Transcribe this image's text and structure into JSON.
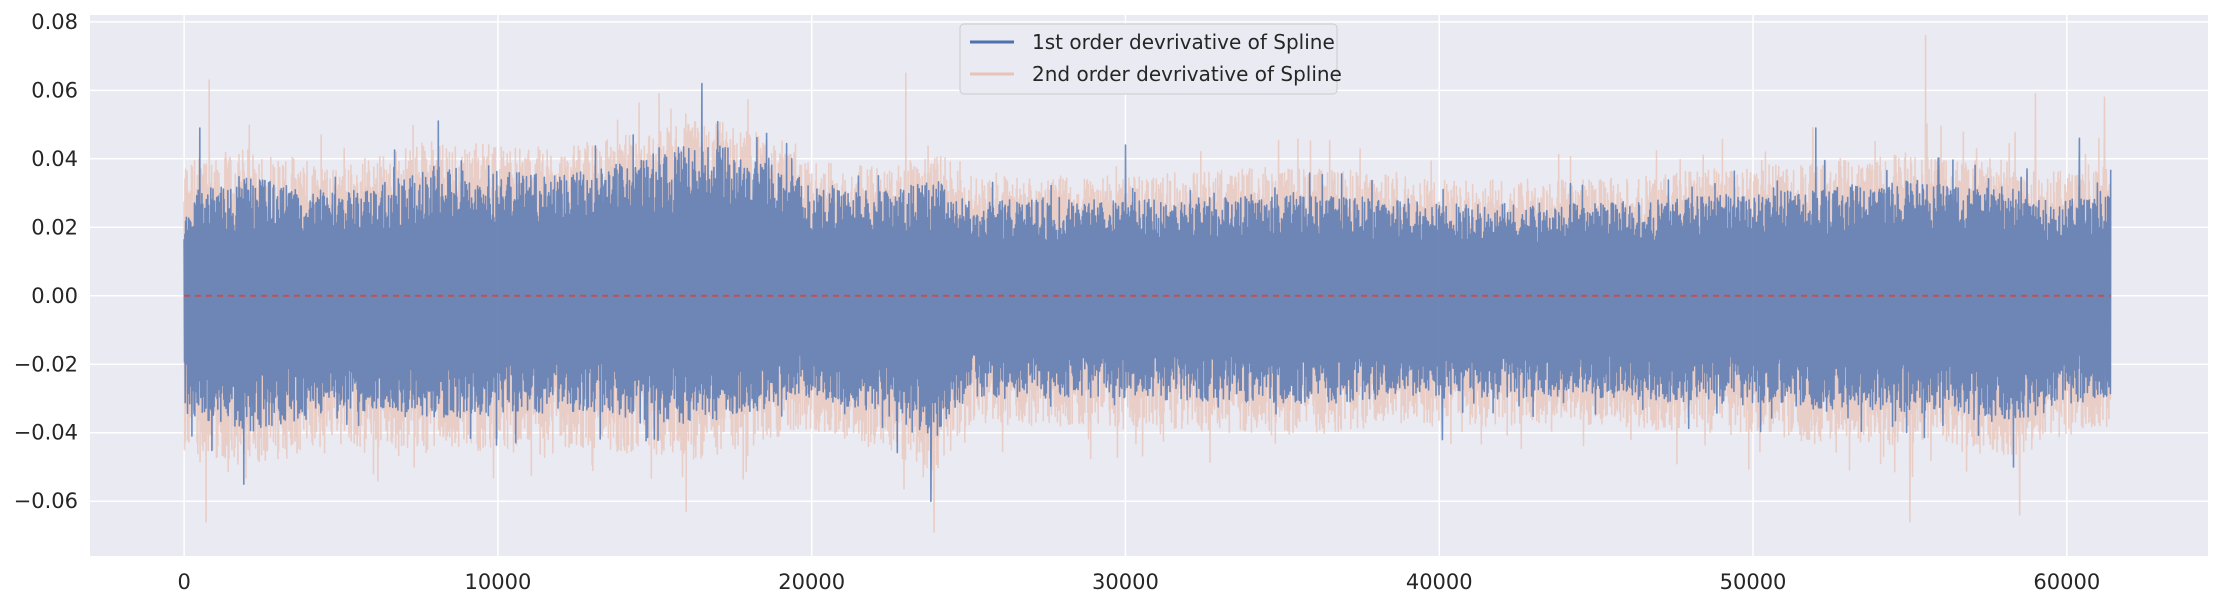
{
  "chart_data": {
    "type": "line",
    "title": "",
    "xlabel": "",
    "ylabel": "",
    "xlim": [
      -3000,
      64500
    ],
    "ylim": [
      -0.076,
      0.082
    ],
    "x_range": [
      0,
      61400
    ],
    "xticks": [
      0,
      10000,
      20000,
      30000,
      40000,
      50000,
      60000
    ],
    "xtick_labels": [
      "0",
      "10000",
      "20000",
      "30000",
      "40000",
      "50000",
      "60000"
    ],
    "yticks": [
      -0.06,
      -0.04,
      -0.02,
      0.0,
      0.02,
      0.04,
      0.06,
      0.08
    ],
    "ytick_labels": [
      "−0.06",
      "−0.04",
      "−0.02",
      "0.00",
      "0.02",
      "0.04",
      "0.06",
      "0.08"
    ],
    "grid": true,
    "legend_position": "top-center",
    "series": [
      {
        "name": "1st order devrivative of Spline",
        "color": "#4c72b0",
        "envelope_x": [
          0,
          2000,
          5000,
          8000,
          12000,
          16500,
          18000,
          20000,
          22000,
          24000,
          25000,
          30000,
          35000,
          40000,
          45000,
          50000,
          55000,
          58000,
          60000,
          61400
        ],
        "envelope_upper": [
          0.03,
          0.035,
          0.03,
          0.038,
          0.035,
          0.045,
          0.042,
          0.032,
          0.03,
          0.034,
          0.028,
          0.028,
          0.03,
          0.027,
          0.027,
          0.03,
          0.034,
          0.032,
          0.028,
          0.03
        ],
        "envelope_lower": [
          -0.035,
          -0.04,
          -0.034,
          -0.036,
          -0.034,
          -0.038,
          -0.034,
          -0.03,
          -0.034,
          -0.042,
          -0.03,
          -0.03,
          -0.032,
          -0.03,
          -0.03,
          -0.032,
          -0.034,
          -0.038,
          -0.032,
          -0.03
        ],
        "peaks": [
          [
            500,
            0.049
          ],
          [
            8100,
            0.051
          ],
          [
            16500,
            0.062
          ],
          [
            30000,
            0.044
          ],
          [
            52000,
            0.049
          ],
          [
            60400,
            0.046
          ],
          [
            1900,
            -0.055
          ],
          [
            23800,
            -0.06
          ],
          [
            40100,
            -0.042
          ],
          [
            58300,
            -0.05
          ]
        ]
      },
      {
        "name": "2nd order devrivative of Spline",
        "color": "#e8c4b8",
        "envelope_x": [
          0,
          2000,
          5000,
          8000,
          12000,
          16500,
          18000,
          20000,
          22000,
          24000,
          25000,
          30000,
          35000,
          40000,
          45000,
          50000,
          55000,
          58000,
          60000,
          61400
        ],
        "envelope_upper": [
          0.04,
          0.043,
          0.038,
          0.046,
          0.043,
          0.052,
          0.049,
          0.039,
          0.038,
          0.042,
          0.035,
          0.035,
          0.038,
          0.034,
          0.034,
          0.038,
          0.042,
          0.04,
          0.036,
          0.038
        ],
        "envelope_lower": [
          -0.045,
          -0.05,
          -0.044,
          -0.046,
          -0.044,
          -0.048,
          -0.044,
          -0.039,
          -0.044,
          -0.052,
          -0.038,
          -0.038,
          -0.041,
          -0.038,
          -0.038,
          -0.041,
          -0.044,
          -0.048,
          -0.041,
          -0.038
        ],
        "peaks": [
          [
            800,
            0.063
          ],
          [
            16000,
            0.064
          ],
          [
            23000,
            0.065
          ],
          [
            55500,
            0.076
          ],
          [
            59000,
            0.059
          ],
          [
            61200,
            0.058
          ],
          [
            700,
            -0.066
          ],
          [
            16000,
            -0.063
          ],
          [
            23900,
            -0.069
          ],
          [
            55000,
            -0.066
          ],
          [
            58500,
            -0.064
          ]
        ]
      }
    ],
    "reference_line": {
      "y": 0,
      "style": "dashed",
      "color": "#c44e52"
    }
  }
}
